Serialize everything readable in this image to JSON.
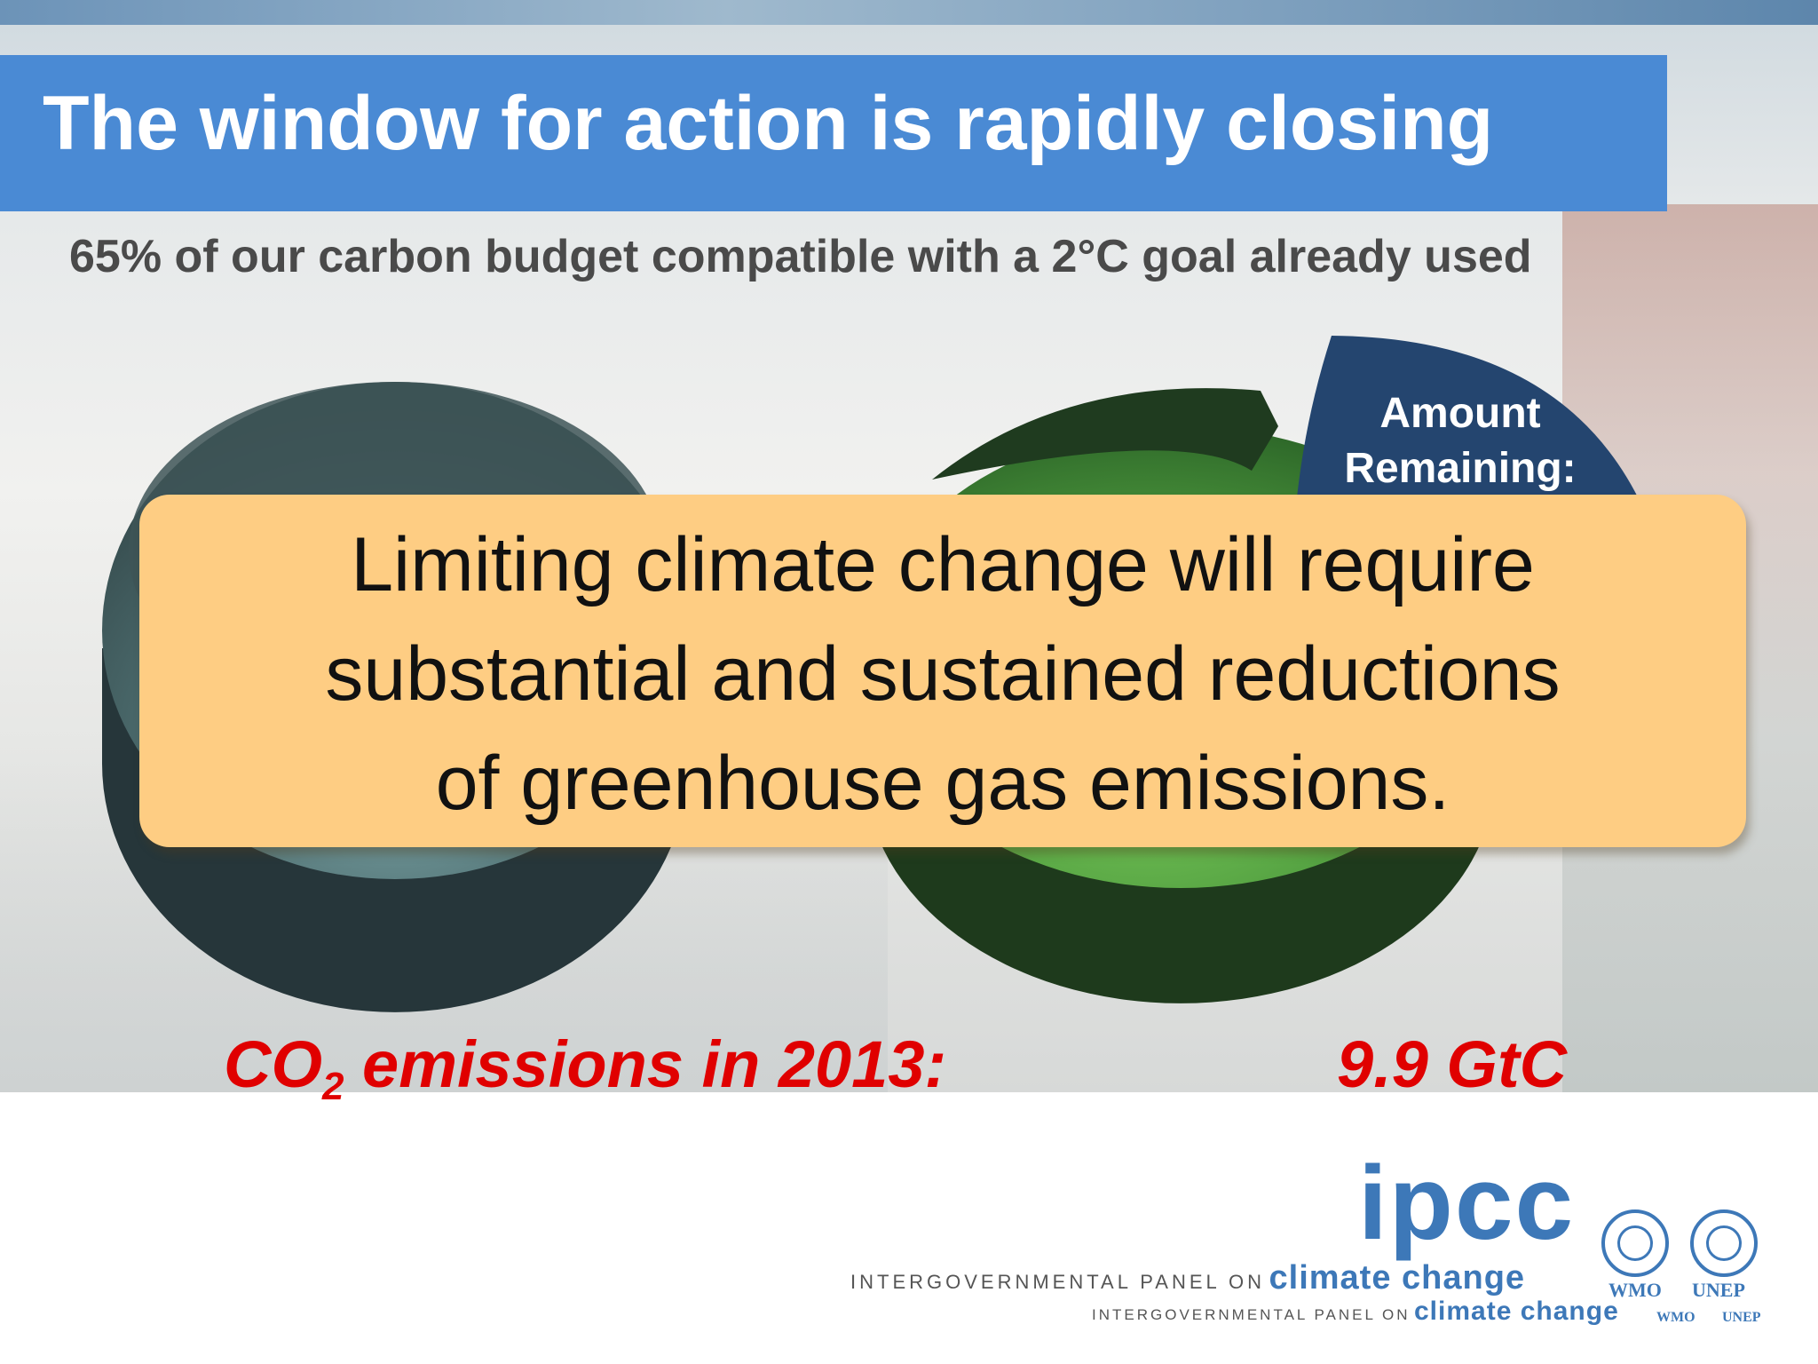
{
  "slide": {
    "title": "The window for action is rapidly closing",
    "subtitle": "65% of our carbon budget compatible with a 2°C goal already used",
    "pie_label": "Amount Remaining:",
    "callout": {
      "line1": "Limiting climate change will require",
      "line2": "substantial and sustained reductions",
      "line3": "of greenhouse gas emissions."
    },
    "emissions": {
      "prefix": "CO",
      "subscript": "2",
      "suffix": " emissions in 2013:",
      "value": "9.9 GtC"
    }
  },
  "footer": {
    "logo_text": "ipcc",
    "org_prefix": "INTERGOVERNMENTAL PANEL ON",
    "org_suffix": "climate change",
    "wmo_label": "WMO",
    "unep_label": "UNEP"
  },
  "colors": {
    "title_bar": "#4a8ad4",
    "callout_fill": "#fecd83",
    "emphasis_red": "#e00000",
    "pie_left": "#3f5a5c",
    "pie_green": "#4c9a3c",
    "pie_remaining": "#24456f",
    "ipcc_blue": "#3d78b8"
  }
}
